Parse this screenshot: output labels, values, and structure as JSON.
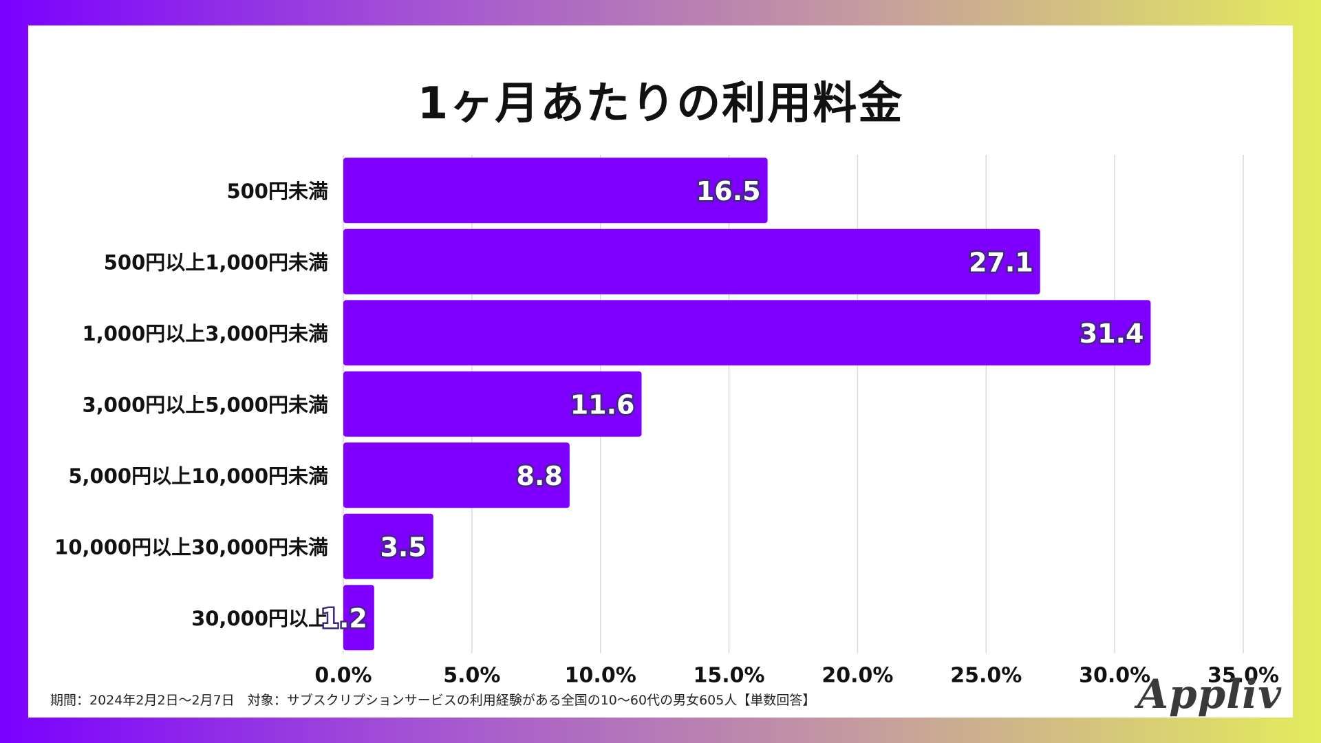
{
  "chart_data": {
    "type": "bar",
    "orientation": "horizontal",
    "title": "1ヶ月あたりの利用料金",
    "categories": [
      "500円未満",
      "500円以上1,000円未満",
      "1,000円以上3,000円未満",
      "3,000円以上5,000円未満",
      "5,000円以上10,000円未満",
      "10,000円以上30,000円未満",
      "30,000円以上"
    ],
    "values": [
      16.5,
      27.1,
      31.4,
      11.6,
      8.8,
      3.5,
      1.2
    ],
    "data_labels": [
      "16.5",
      "27.1",
      "31.4",
      "11.6",
      "8.8",
      "3.5",
      "1.2"
    ],
    "xlim": [
      0,
      35
    ],
    "x_ticks": [
      0,
      5,
      10,
      15,
      20,
      25,
      30,
      35
    ],
    "x_tick_labels": [
      "0.0%",
      "5.0%",
      "10.0%",
      "15.0%",
      "20.0%",
      "25.0%",
      "30.0%",
      "35.0%"
    ],
    "xlabel": "",
    "ylabel": "",
    "grid": true,
    "bar_color": "#8000ff"
  },
  "footnote": "期間：2024年2月2日～2月7日　対象：サブスクリプションサービスの利用経験がある全国の10～60代の男女605人【単数回答】",
  "logo_text": "Appliv"
}
